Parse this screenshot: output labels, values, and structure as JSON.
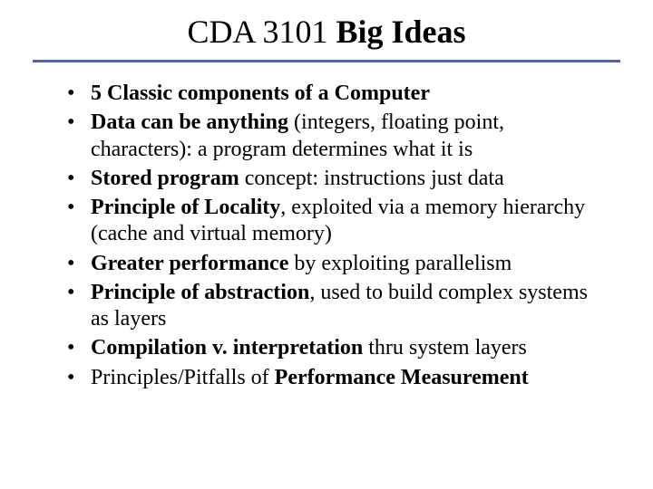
{
  "title_prefix": "CDA 3101 ",
  "title_bold": "Big Ideas",
  "rule_color": "#4a66b0",
  "bullets": [
    {
      "bold1": "5 Classic components of a Computer",
      "rest": ""
    },
    {
      "bold1": "Data can be anything",
      "rest": " (integers, floating point, characters): a program determines what it is"
    },
    {
      "bold1": "Stored program",
      "rest": " concept: instructions just data"
    },
    {
      "bold1": "Principle of Locality",
      "rest": ", exploited via a memory hierarchy (cache and virtual memory)"
    },
    {
      "bold1": "Greater performance",
      "rest": " by exploiting parallelism"
    },
    {
      "bold1": "Principle of abstraction",
      "rest": ", used to build complex systems as layers"
    },
    {
      "bold1": "Compilation v. interpretation",
      "rest": " thru system layers"
    },
    {
      "pre": "Principles/Pitfalls of ",
      "bold1": "Performance Measurement",
      "rest": ""
    }
  ]
}
